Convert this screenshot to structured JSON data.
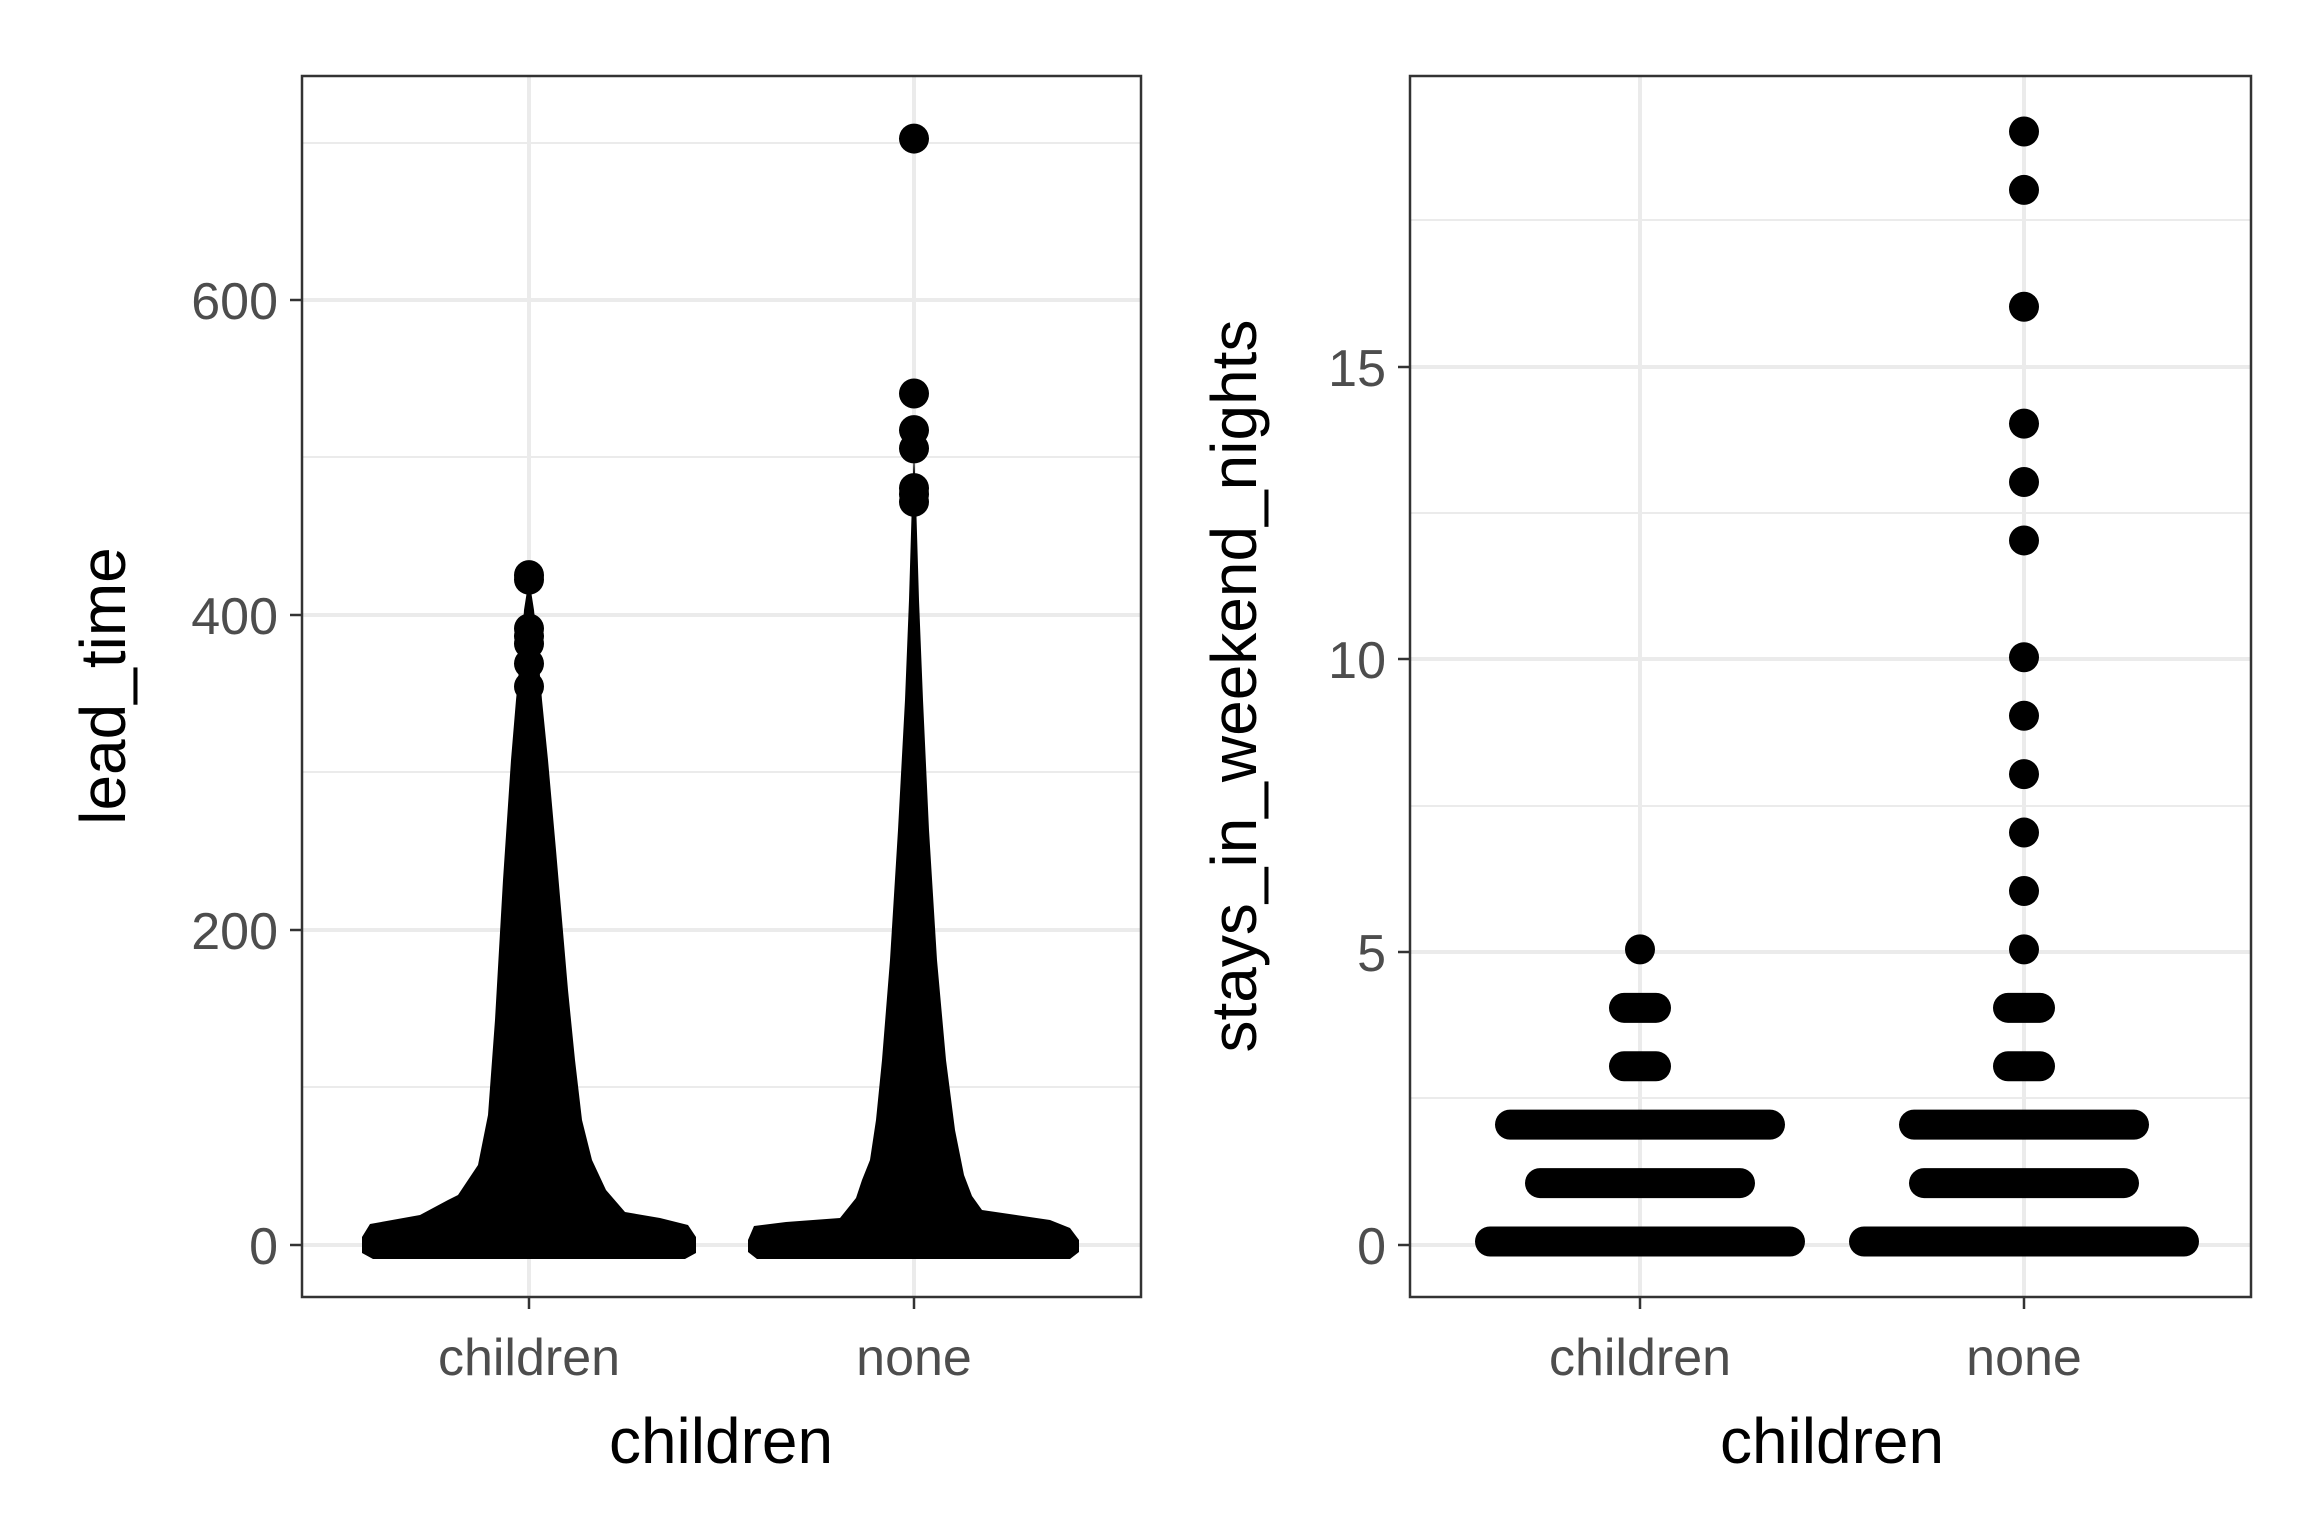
{
  "chart_data": [
    {
      "type": "scatter",
      "style": "beeswarm",
      "title": "",
      "xlabel": "children",
      "ylabel": "lead_time",
      "categories": [
        "children",
        "none"
      ],
      "ylim": [
        -50,
        750
      ],
      "y_ticks": [
        0,
        200,
        400,
        600
      ],
      "y_tick_labels": [
        "0",
        "200",
        "400",
        "600"
      ],
      "grid": true,
      "theme": "black-and-white",
      "point_color": "#000000",
      "series": [
        {
          "category": "children",
          "min": 0,
          "max": 423,
          "outliers": [
            423,
            420,
            388,
            383,
            378,
            365,
            350
          ]
        },
        {
          "category": "none",
          "min": 0,
          "max": 709,
          "outliers": [
            709,
            542,
            518,
            506,
            480,
            476,
            471
          ]
        }
      ]
    },
    {
      "type": "scatter",
      "style": "beeswarm",
      "title": "",
      "xlabel": "children",
      "ylabel": "stays_in_weekend_nights",
      "categories": [
        "children",
        "none"
      ],
      "ylim": [
        -0.95,
        19.95
      ],
      "y_ticks": [
        0,
        5,
        10,
        15
      ],
      "y_tick_labels": [
        "0",
        "5",
        "10",
        "15"
      ],
      "grid": true,
      "theme": "black-and-white",
      "point_color": "#000000",
      "series": [
        {
          "category": "children",
          "values": [
            0,
            1,
            2,
            3,
            4,
            5
          ]
        },
        {
          "category": "none",
          "values": [
            0,
            1,
            2,
            3,
            4,
            5,
            6,
            7,
            8,
            9,
            10,
            12,
            13,
            14,
            16,
            18,
            19
          ]
        }
      ]
    }
  ]
}
